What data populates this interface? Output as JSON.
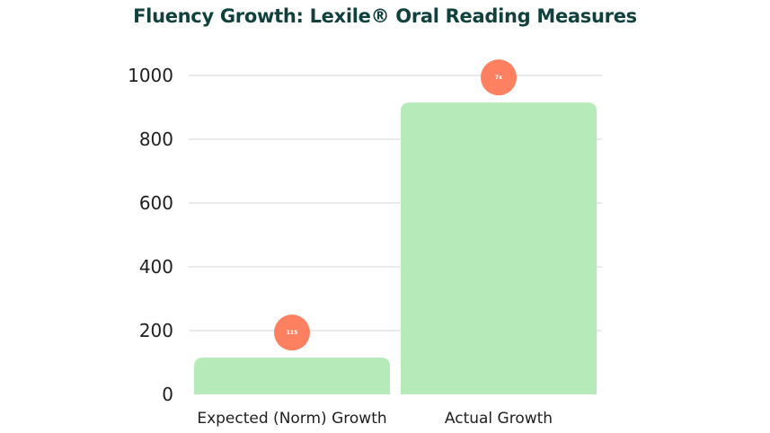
{
  "chart_data": {
    "type": "bar",
    "title": "Fluency Growth: Lexile® Oral Reading Measures",
    "xlabel": "",
    "ylabel": "",
    "categories": [
      "Expected (Norm) Growth",
      "Actual Growth"
    ],
    "values": [
      115,
      915
    ],
    "badges": [
      "115",
      "7x"
    ],
    "ylim": [
      0,
      1000
    ],
    "yticks": [
      0,
      200,
      400,
      600,
      800,
      1000
    ],
    "grid": true,
    "legend": "none",
    "colors": {
      "bar": "#b6eab9",
      "badge": "#fd8061",
      "title": "#11413d",
      "grid": "#d6d6d6"
    }
  }
}
